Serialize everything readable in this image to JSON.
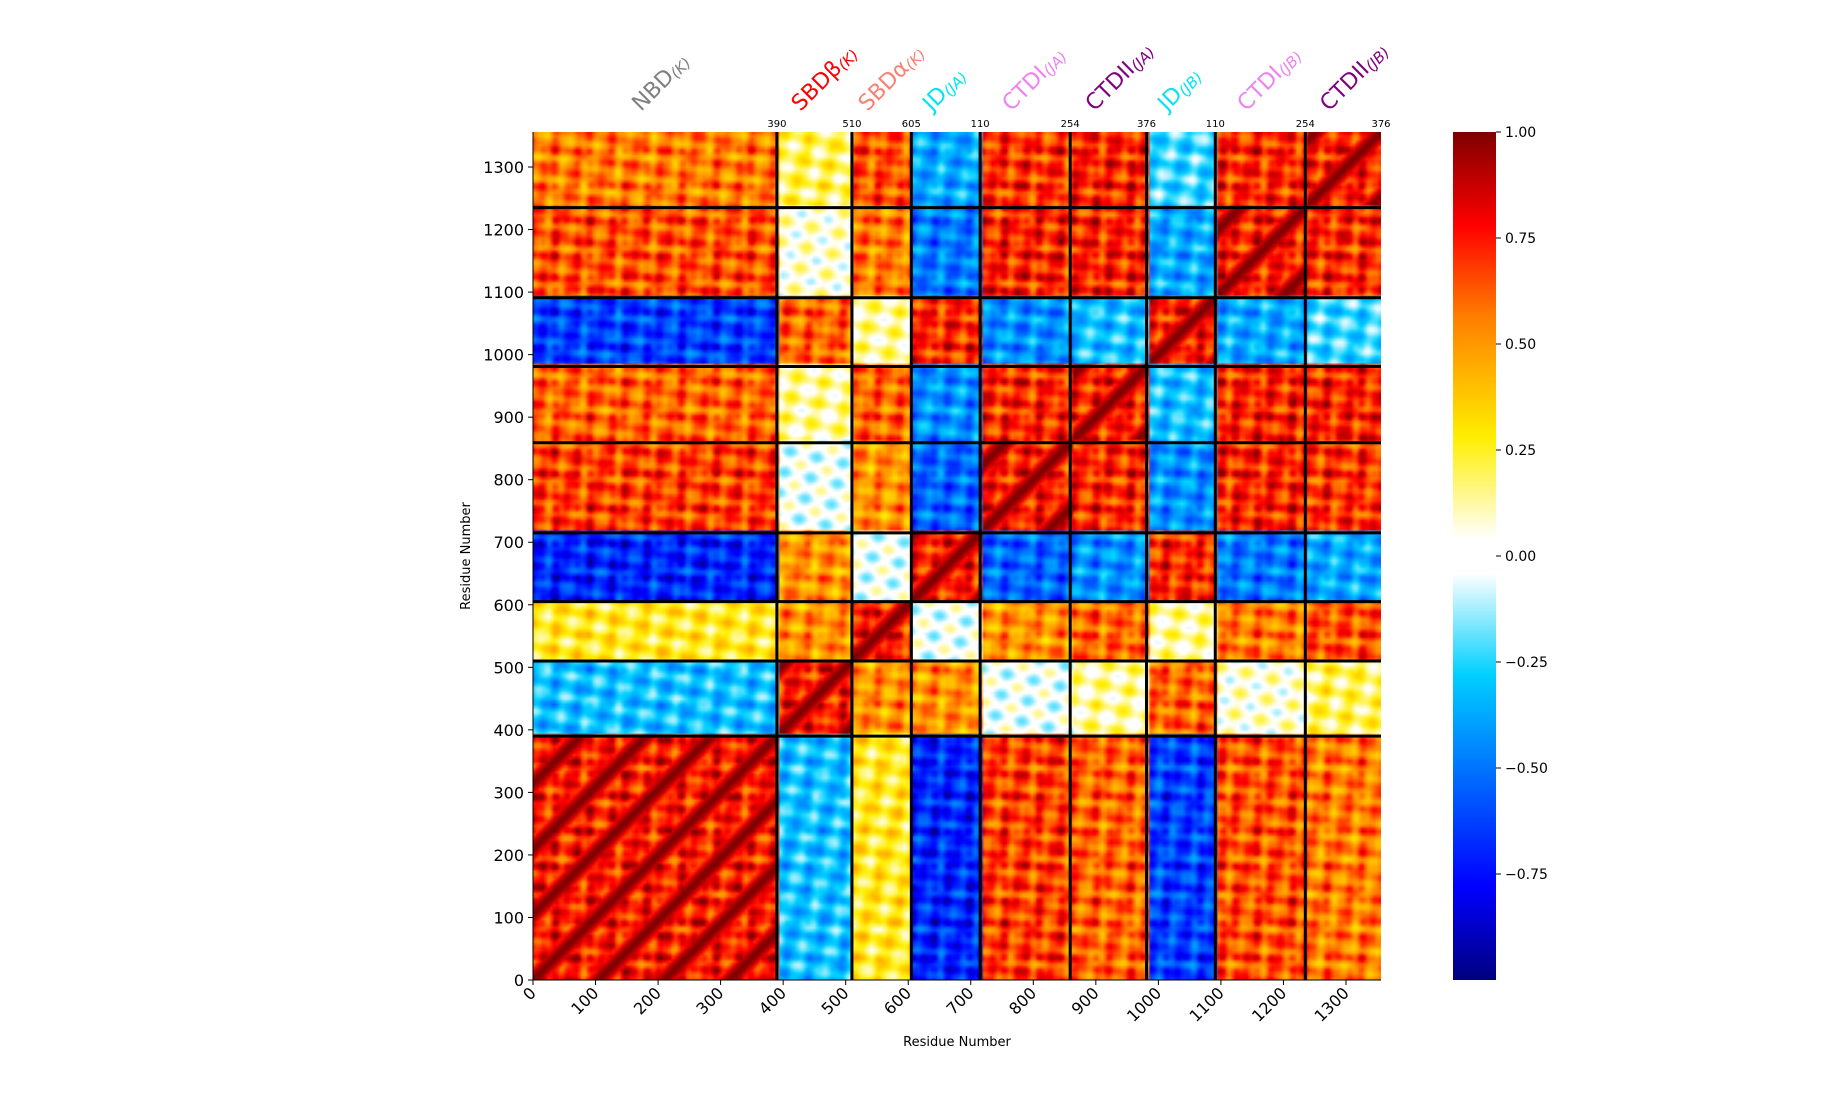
{
  "chart_data": {
    "type": "heatmap",
    "title": "",
    "xlabel": "Residue Number",
    "ylabel": "Residue Number",
    "xlim": [
      0,
      1356
    ],
    "ylim": [
      0,
      1356
    ],
    "x_ticks": [
      0,
      100,
      200,
      300,
      400,
      500,
      600,
      700,
      800,
      900,
      1000,
      1100,
      1200,
      1300
    ],
    "y_ticks": [
      0,
      100,
      200,
      300,
      400,
      500,
      600,
      700,
      800,
      900,
      1000,
      1100,
      1200,
      1300
    ],
    "colorbar": {
      "range": [
        -1.0,
        1.0
      ],
      "ticks": [
        "1.00",
        "0.75",
        "0.50",
        "0.25",
        "0.00",
        "−0.25",
        "−0.50",
        "−0.75"
      ],
      "tick_values": [
        1.0,
        0.75,
        0.5,
        0.25,
        0.0,
        -0.25,
        -0.5,
        -0.75
      ],
      "colormap": "jet"
    },
    "boundaries": [
      390,
      510,
      605,
      715,
      859,
      981,
      1091,
      1235
    ],
    "boundary_labels": [
      {
        "text": "390",
        "x": 390
      },
      {
        "text": "510",
        "x": 510
      },
      {
        "text": "605",
        "x": 605
      },
      {
        "text": "110",
        "x": 715
      },
      {
        "text": "254",
        "x": 859
      },
      {
        "text": "376",
        "x": 981
      },
      {
        "text": "110",
        "x": 1091
      },
      {
        "text": "254",
        "x": 1235
      },
      {
        "text": "376",
        "x": 1356
      }
    ],
    "domains": [
      {
        "name": "NBD",
        "sub": "(K)",
        "center": 195,
        "color": "#808080"
      },
      {
        "name": "SBDβ",
        "sub": "(K)",
        "center": 450,
        "color": "#ff0000"
      },
      {
        "name": "SBDα",
        "sub": "(K)",
        "center": 557,
        "color": "#fa8072"
      },
      {
        "name": "JD",
        "sub": "(JA)",
        "center": 660,
        "color": "#00e5ee"
      },
      {
        "name": "CTDI",
        "sub": "(JA)",
        "center": 787,
        "color": "#ee82ee"
      },
      {
        "name": "CTDII",
        "sub": "(JA)",
        "center": 920,
        "color": "#800080"
      },
      {
        "name": "JD",
        "sub": "(JB)",
        "center": 1036,
        "color": "#00e5ee"
      },
      {
        "name": "CTDI",
        "sub": "(JB)",
        "center": 1163,
        "color": "#ee82ee"
      },
      {
        "name": "CTDII",
        "sub": "(JB)",
        "center": 1295,
        "color": "#800080"
      }
    ]
  }
}
